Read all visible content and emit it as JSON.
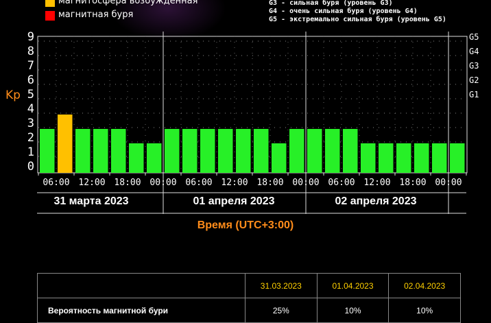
{
  "legend": [
    {
      "label": "магнитосфера возбужденная",
      "color": "#ffc000"
    },
    {
      "label": "магнитная буря",
      "color": "#ff0000"
    }
  ],
  "g_levels": [
    "G3 - сильная буря (уровень G3)",
    "G4 - очень сильная буря (уровень G4)",
    "G5 - экстремально сильная буря (уровень G5)"
  ],
  "colors": {
    "quiet": "#27f027",
    "active": "#ffc000",
    "storm": "#ff0000",
    "accent": "#ff8c1a"
  },
  "chart_data": {
    "type": "bar",
    "ylabel": "Kp",
    "xlabel": "Время (UTC+3:00)",
    "ylim": [
      0,
      9
    ],
    "yticks": [
      "0",
      "1",
      "2",
      "3",
      "4",
      "5",
      "6",
      "7",
      "8",
      "9"
    ],
    "right_axis": [
      "G1",
      "G2",
      "G3",
      "G4",
      "G5"
    ],
    "xticks": [
      "06:00",
      "12:00",
      "18:00",
      "00:00",
      "06:00",
      "12:00",
      "18:00",
      "00:00",
      "06:00",
      "12:00",
      "18:00",
      "00:00"
    ],
    "days": [
      "31 марта 2023",
      "01 апреля 2023",
      "02 апреля 2023"
    ],
    "values": [
      3,
      4,
      3,
      3,
      3,
      2,
      2,
      3,
      3,
      3,
      3,
      3,
      3,
      2,
      3,
      3,
      3,
      3,
      2,
      2,
      2,
      2,
      2,
      2
    ],
    "categories": [
      "quiet",
      "active",
      "quiet",
      "quiet",
      "quiet",
      "quiet",
      "quiet",
      "quiet",
      "quiet",
      "quiet",
      "quiet",
      "quiet",
      "quiet",
      "quiet",
      "quiet",
      "quiet",
      "quiet",
      "quiet",
      "quiet",
      "quiet",
      "quiet",
      "quiet",
      "quiet",
      "quiet"
    ],
    "grid": true
  },
  "table": {
    "headers": [
      "31.03.2023",
      "01.04.2023",
      "02.04.2023"
    ],
    "row_label": "Вероятность магнитной бури",
    "values": [
      "25%",
      "10%",
      "10%"
    ]
  }
}
